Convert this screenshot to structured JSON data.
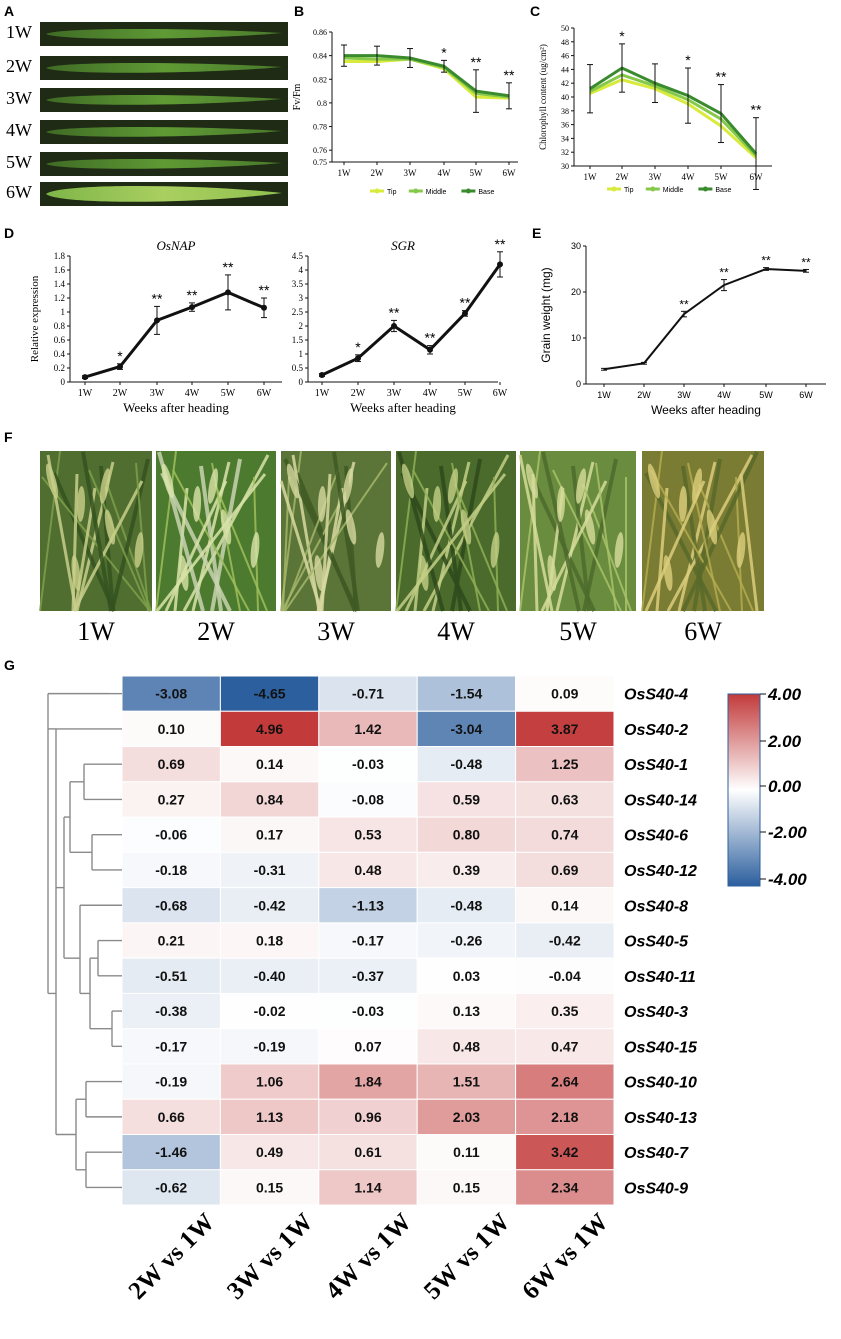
{
  "colors": {
    "tip": "#d8ea3c",
    "middle": "#86c94a",
    "base": "#3a8a2e",
    "line": "#111111",
    "pos": "#c23a3a",
    "neg": "#2c5f9e",
    "leafDark": "#1f2b14",
    "leafLight": "#6fa83a"
  },
  "panels": {
    "A": "A",
    "B": "B",
    "C": "C",
    "D": "D",
    "E": "E",
    "F": "F",
    "G": "G"
  },
  "weeks": [
    "1W",
    "2W",
    "3W",
    "4W",
    "5W",
    "6W"
  ],
  "photo_names": [
    "field-photo-1w",
    "field-photo-2w",
    "field-photo-3w",
    "field-photo-4w",
    "field-photo-5w",
    "field-photo-6w"
  ],
  "chart_data": [
    {
      "id": "B",
      "type": "line",
      "title": "",
      "xlabel": "",
      "ylabel": "Fv/Fm",
      "categories": [
        "1W",
        "2W",
        "3W",
        "4W",
        "5W",
        "6W"
      ],
      "yticks": [
        "0.75",
        "0.76",
        "0.78",
        "0.8",
        "0.82",
        "0.84",
        "0.86"
      ],
      "ylim": [
        0.75,
        0.86
      ],
      "series": [
        {
          "name": "Tip",
          "color": "tip",
          "values": [
            0.835,
            0.835,
            0.837,
            0.829,
            0.805,
            0.804
          ]
        },
        {
          "name": "Middle",
          "color": "middle",
          "values": [
            0.838,
            0.837,
            0.837,
            0.83,
            0.808,
            0.805
          ]
        },
        {
          "name": "Base",
          "color": "base",
          "values": [
            0.84,
            0.84,
            0.838,
            0.831,
            0.81,
            0.806
          ]
        }
      ],
      "err": [
        0.009,
        0.008,
        0.008,
        0.005,
        0.018,
        0.011
      ],
      "stars": [
        "",
        "",
        "",
        "*",
        "**",
        "**"
      ],
      "legend": [
        "Tip",
        "Middle",
        "Base"
      ]
    },
    {
      "id": "C",
      "type": "line",
      "title": "",
      "xlabel": "",
      "ylabel": "Chlorophyll content (ug/cm²)",
      "categories": [
        "1W",
        "2W",
        "3W",
        "4W",
        "5W",
        "6W"
      ],
      "yticks": [
        "30",
        "32",
        "34",
        "36",
        "38",
        "40",
        "42",
        "44",
        "46",
        "48",
        "50"
      ],
      "ylim": [
        30,
        50
      ],
      "series": [
        {
          "name": "Tip",
          "color": "tip",
          "values": [
            40.5,
            42.5,
            41.2,
            39.0,
            35.8,
            31.2
          ]
        },
        {
          "name": "Middle",
          "color": "middle",
          "values": [
            40.8,
            43.2,
            41.6,
            39.6,
            36.8,
            31.5
          ]
        },
        {
          "name": "Base",
          "color": "base",
          "values": [
            41.2,
            44.2,
            42.0,
            40.2,
            37.6,
            31.8
          ]
        }
      ],
      "err": [
        3.5,
        3.5,
        2.8,
        4.0,
        4.2,
        5.2
      ],
      "stars": [
        "",
        "*",
        "",
        "*",
        "**",
        "**"
      ],
      "legend": [
        "Tip",
        "Middle",
        "Base"
      ]
    },
    {
      "id": "D1",
      "type": "line",
      "title": "OsNAP",
      "xlabel": "Weeks after heading",
      "ylabel": "Relative expression",
      "categories": [
        "1W",
        "2W",
        "3W",
        "4W",
        "5W",
        "6W"
      ],
      "yticks": [
        "0",
        "0.2",
        "0.4",
        "0.6",
        "0.8",
        "1",
        "1.2",
        "1.4",
        "1.6",
        "1.8"
      ],
      "ylim": [
        0,
        1.8
      ],
      "values": [
        0.07,
        0.22,
        0.88,
        1.07,
        1.28,
        1.06
      ],
      "err": [
        0.02,
        0.04,
        0.2,
        0.06,
        0.25,
        0.14
      ],
      "stars": [
        "",
        "*",
        "**",
        "**",
        "**",
        "**"
      ]
    },
    {
      "id": "D2",
      "type": "line",
      "title": "SGR",
      "xlabel": "Weeks after heading",
      "ylabel": "",
      "categories": [
        "1W",
        "2W",
        "3W",
        "4W",
        "5W",
        "6W"
      ],
      "yticks": [
        "0",
        "0.5",
        "1",
        "1.5",
        "2",
        "2.5",
        "3",
        "3.5",
        "4",
        "4.5"
      ],
      "ylim": [
        0,
        4.5
      ],
      "values": [
        0.25,
        0.85,
        2.0,
        1.15,
        2.45,
        4.2
      ],
      "err": [
        0.05,
        0.12,
        0.2,
        0.15,
        0.1,
        0.45
      ],
      "stars": [
        "",
        "*",
        "**",
        "**",
        "**",
        "**"
      ]
    },
    {
      "id": "E",
      "type": "line",
      "title": "",
      "xlabel": "Weeks after heading",
      "ylabel": "Grain weight (mg)",
      "categories": [
        "1W",
        "2W",
        "3W",
        "4W",
        "5W",
        "6W"
      ],
      "yticks": [
        "0",
        "10",
        "20",
        "30"
      ],
      "ylim": [
        0,
        30
      ],
      "values": [
        3.2,
        4.5,
        15.2,
        21.5,
        25.0,
        24.6
      ],
      "err": [
        0.2,
        0.2,
        0.6,
        1.2,
        0.3,
        0.3
      ],
      "stars": [
        "",
        "",
        "**",
        "**",
        "**",
        "**"
      ]
    },
    {
      "id": "G",
      "type": "heatmap",
      "title": "",
      "columns": [
        "2W vs 1W",
        "3W vs 1W",
        "4W vs 1W",
        "5W vs 1W",
        "6W vs 1W"
      ],
      "rows": [
        "OsS40-4",
        "OsS40-2",
        "OsS40-1",
        "OsS40-14",
        "OsS40-6",
        "OsS40-12",
        "OsS40-8",
        "OsS40-5",
        "OsS40-11",
        "OsS40-3",
        "OsS40-15",
        "OsS40-10",
        "OsS40-13",
        "OsS40-7",
        "OsS40-9"
      ],
      "values": [
        [
          -3.08,
          -4.65,
          -0.71,
          -1.54,
          0.09
        ],
        [
          0.1,
          4.96,
          1.42,
          -3.04,
          3.87
        ],
        [
          0.69,
          0.14,
          -0.03,
          -0.48,
          1.25
        ],
        [
          0.27,
          0.84,
          -0.08,
          0.59,
          0.63
        ],
        [
          -0.06,
          0.17,
          0.53,
          0.8,
          0.74
        ],
        [
          -0.18,
          -0.31,
          0.48,
          0.39,
          0.69
        ],
        [
          -0.68,
          -0.42,
          -1.13,
          -0.48,
          0.14
        ],
        [
          0.21,
          0.18,
          -0.17,
          -0.26,
          -0.42
        ],
        [
          -0.51,
          -0.4,
          -0.37,
          0.03,
          -0.04
        ],
        [
          -0.38,
          -0.02,
          -0.03,
          0.13,
          0.35
        ],
        [
          -0.17,
          -0.19,
          0.07,
          0.48,
          0.47
        ],
        [
          -0.19,
          1.06,
          1.84,
          1.51,
          2.64
        ],
        [
          0.66,
          1.13,
          0.96,
          2.03,
          2.18
        ],
        [
          -1.46,
          0.49,
          0.61,
          0.11,
          3.42
        ],
        [
          -0.62,
          0.15,
          1.14,
          0.15,
          2.34
        ]
      ],
      "scale_labels": [
        "4.00",
        "2.00",
        "0.00",
        "-2.00",
        "-4.00"
      ],
      "scale": [
        -4,
        4
      ]
    }
  ]
}
